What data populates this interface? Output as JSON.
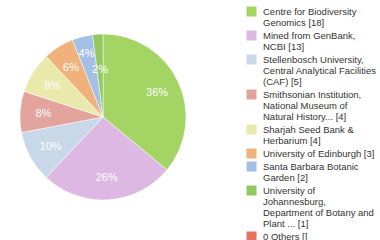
{
  "chart_data": {
    "type": "pie",
    "categories": [
      "Centre for Biodiversity Genomics [18]",
      "Mined from GenBank, NCBI [13]",
      "Stellenbosch University, Central Analytical Facilities (CAF) [5]",
      "Smithsonian Institution, National Museum of Natural History... [4]",
      "Sharjah Seed Bank & Herbarium [4]",
      "University of Edinburgh [3]",
      "Santa Barbara Botanic Garden [2]",
      "University of Johannesburg, Department of Botany and Plant ... [1]",
      "0 Others []"
    ],
    "values": [
      36,
      26,
      10,
      8,
      8,
      6,
      4,
      2,
      0
    ],
    "value_labels": [
      "36%",
      "26%",
      "10%",
      "8%",
      "8%",
      "6%",
      "4%",
      "2%",
      null
    ],
    "colors": [
      "#a3d464",
      "#dcb8e2",
      "#c8d8e8",
      "#e2a49c",
      "#e9e9ac",
      "#f0b27c",
      "#a4c0e4",
      "#92c860",
      "#e87460"
    ],
    "data_labels": true,
    "legend": "right"
  }
}
